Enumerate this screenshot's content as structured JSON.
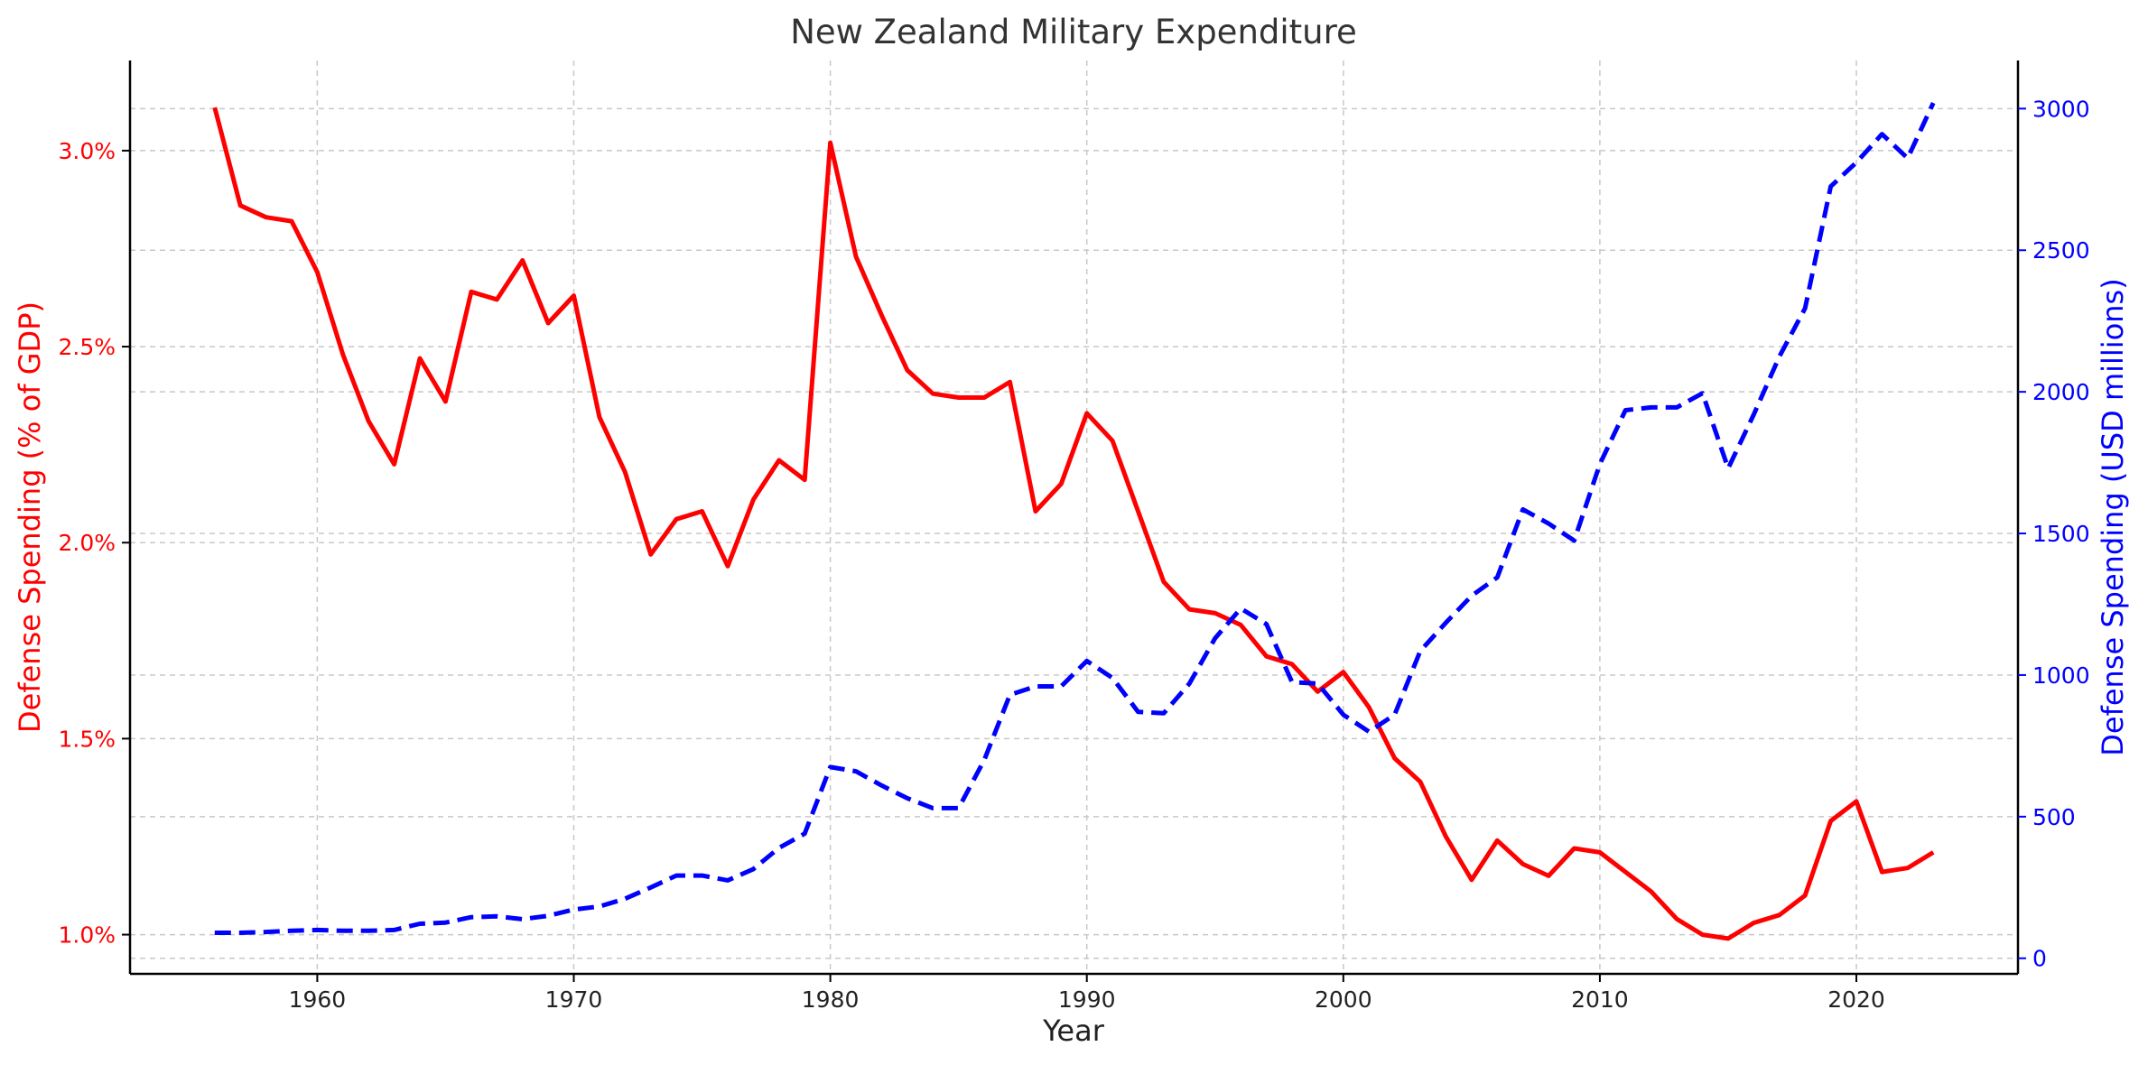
{
  "chart_data": {
    "type": "line",
    "title": "New Zealand Military Expenditure",
    "xlabel": "Year",
    "ylabel": "Defense Spending (% of GDP)",
    "y2label": "Defense Spending (USD millions)",
    "xlim": [
      1952.7,
      2026.3
    ],
    "ylim": [
      0.9,
      3.23
    ],
    "y2lim": [
      -55,
      3170
    ],
    "xticks": [
      1960,
      1970,
      1980,
      1990,
      2000,
      2010,
      2020
    ],
    "xtick_labels": [
      "1960",
      "1970",
      "1980",
      "1990",
      "2000",
      "2010",
      "2020"
    ],
    "yticks": [
      1.0,
      1.5,
      2.0,
      2.5,
      3.0
    ],
    "ytick_labels": [
      "1.0%",
      "1.5%",
      "2.0%",
      "2.5%",
      "3.0%"
    ],
    "y2ticks": [
      0,
      500,
      1000,
      1500,
      2000,
      2500,
      3000
    ],
    "y2tick_labels": [
      "0",
      "500",
      "1000",
      "1500",
      "2000",
      "2500",
      "3000"
    ],
    "grid": true,
    "colors": {
      "gdp": "#ff0000",
      "usd": "#0000ff",
      "axis": "#000000"
    },
    "x": [
      1956,
      1957,
      1958,
      1959,
      1960,
      1961,
      1962,
      1963,
      1964,
      1965,
      1966,
      1967,
      1968,
      1969,
      1970,
      1971,
      1972,
      1973,
      1974,
      1975,
      1976,
      1977,
      1978,
      1979,
      1980,
      1981,
      1982,
      1983,
      1984,
      1985,
      1986,
      1987,
      1988,
      1989,
      1990,
      1991,
      1992,
      1993,
      1994,
      1995,
      1996,
      1997,
      1998,
      1999,
      2000,
      2001,
      2002,
      2003,
      2004,
      2005,
      2006,
      2007,
      2008,
      2009,
      2010,
      2011,
      2012,
      2013,
      2014,
      2015,
      2016,
      2017,
      2018,
      2019,
      2020,
      2021,
      2022,
      2023
    ],
    "series": [
      {
        "name": "Defense Spending (% of GDP)",
        "axis": "left",
        "style": "solid",
        "values": [
          3.11,
          2.86,
          2.83,
          2.82,
          2.69,
          2.48,
          2.31,
          2.2,
          2.47,
          2.36,
          2.64,
          2.62,
          2.72,
          2.56,
          2.63,
          2.32,
          2.18,
          1.97,
          2.06,
          2.08,
          1.94,
          2.11,
          2.21,
          2.16,
          3.02,
          2.73,
          2.58,
          2.44,
          2.38,
          2.37,
          2.37,
          2.41,
          2.08,
          2.15,
          2.33,
          2.26,
          2.08,
          1.9,
          1.83,
          1.82,
          1.79,
          1.71,
          1.69,
          1.62,
          1.67,
          1.58,
          1.45,
          1.39,
          1.25,
          1.14,
          1.24,
          1.18,
          1.15,
          1.22,
          1.21,
          1.16,
          1.11,
          1.04,
          1.0,
          0.99,
          1.03,
          1.05,
          1.1,
          1.29,
          1.34,
          1.16,
          1.17,
          1.21
        ]
      },
      {
        "name": "Defense Spending (USD millions)",
        "axis": "right",
        "style": "dashed",
        "values": [
          90,
          90,
          93,
          97,
          100,
          97,
          97,
          100,
          122,
          126,
          145,
          148,
          138,
          150,
          172,
          183,
          210,
          250,
          292,
          292,
          275,
          315,
          390,
          440,
          675,
          660,
          610,
          565,
          530,
          530,
          700,
          930,
          960,
          960,
          1050,
          990,
          870,
          865,
          970,
          1130,
          1235,
          1180,
          975,
          970,
          860,
          800,
          860,
          1085,
          1185,
          1280,
          1345,
          1585,
          1535,
          1475,
          1745,
          1935,
          1945,
          1945,
          1995,
          1730,
          1920,
          2125,
          2295,
          2725,
          2810,
          2910,
          2825,
          3020
        ]
      }
    ]
  }
}
